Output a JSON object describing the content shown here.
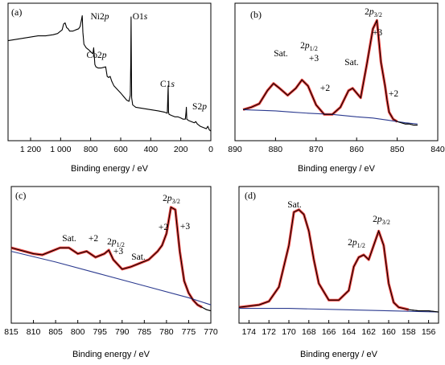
{
  "chart_data": [
    {
      "panel": "(a)",
      "type": "line",
      "xlabel": "Binding energy / eV",
      "ylabel": "",
      "xlim": [
        1350,
        0
      ],
      "ylim": [
        0,
        100
      ],
      "x_ticks": [
        1200,
        1000,
        800,
        600,
        400,
        200,
        0
      ],
      "x_tick_labels": [
        "1 200",
        "1 000",
        "800",
        "600",
        "400",
        "200",
        "0"
      ],
      "annotations": [
        {
          "text": "Ni2p",
          "x": 855
        },
        {
          "text": "Co2p",
          "x": 780
        },
        {
          "text": "O1s",
          "x": 531
        },
        {
          "text": "C1s",
          "x": 285
        },
        {
          "text": "S2p",
          "x": 163
        }
      ],
      "series": [
        {
          "color": "#000000",
          "x": [
            1350,
            1300,
            1250,
            1200,
            1150,
            1100,
            1050,
            1020,
            1000,
            990,
            980,
            970,
            960,
            950,
            940,
            920,
            900,
            880,
            870,
            862,
            856,
            852,
            845,
            830,
            810,
            795,
            785,
            780,
            776,
            772,
            765,
            750,
            730,
            700,
            690,
            680,
            670,
            660,
            645,
            630,
            615,
            600,
            580,
            560,
            545,
            536,
            533,
            531,
            529,
            527,
            520,
            500,
            450,
            400,
            350,
            310,
            290,
            286,
            284,
            282,
            278,
            260,
            240,
            220,
            200,
            185,
            170,
            165,
            163,
            160,
            150,
            130,
            110,
            100,
            90,
            70,
            50,
            30,
            20,
            10,
            0
          ],
          "y": [
            78,
            79,
            80,
            81,
            82,
            82,
            83,
            84,
            86,
            87,
            92,
            93,
            89,
            88,
            86,
            86,
            87,
            88,
            90,
            95,
            99,
            85,
            75,
            72,
            70,
            68,
            67,
            72,
            66,
            58,
            56,
            55,
            55,
            56,
            48,
            47,
            48,
            44,
            40,
            38,
            36,
            34,
            31,
            28,
            27,
            32,
            60,
            98,
            55,
            30,
            24,
            22,
            21,
            20,
            19,
            18,
            17,
            32,
            40,
            18,
            16,
            15,
            14,
            14,
            13,
            12,
            12,
            18,
            22,
            12,
            11,
            10,
            9,
            10,
            8,
            6,
            5,
            4,
            6,
            3,
            2
          ]
        }
      ]
    },
    {
      "panel": "(b)",
      "type": "line",
      "xlabel": "Binding energy / eV",
      "ylabel": "",
      "xlim": [
        890,
        840
      ],
      "ylim": [
        0,
        100
      ],
      "x_ticks": [
        890,
        880,
        870,
        860,
        850,
        840
      ],
      "annotations": [
        {
          "text": "Sat.",
          "x": 880.5
        },
        {
          "text": "2p1/2",
          "x": 873.5
        },
        {
          "text": "+3",
          "x": 873.5
        },
        {
          "text": "+2",
          "x": 870.5
        },
        {
          "text": "Sat.",
          "x": 861.5
        },
        {
          "text": "2p3/2",
          "x": 856
        },
        {
          "text": "+3",
          "x": 856
        },
        {
          "text": "+2",
          "x": 852.5
        }
      ],
      "series": [
        {
          "color": "#000000",
          "x": [
            888,
            886,
            884,
            882,
            880.5,
            879,
            877,
            875,
            873.5,
            872,
            870,
            868,
            866,
            864,
            862,
            861,
            859,
            857.5,
            856,
            855,
            854,
            853,
            852.5,
            852,
            851,
            850,
            849,
            848,
            847,
            846,
            845
          ],
          "y": [
            20,
            22,
            25,
            36,
            42,
            38,
            32,
            38,
            45,
            40,
            24,
            16,
            16,
            22,
            36,
            38,
            30,
            58,
            88,
            95,
            60,
            40,
            28,
            18,
            12,
            10,
            9,
            8,
            8,
            7,
            7
          ]
        },
        {
          "color": "#e8231f",
          "x": [
            888,
            886,
            884,
            882,
            880.5,
            879,
            877,
            875,
            873.5,
            872,
            870,
            868,
            866,
            864,
            862,
            861,
            859,
            857.5,
            856,
            855,
            854,
            853,
            852.5,
            852,
            851,
            850
          ],
          "y": [
            20,
            22,
            25,
            36,
            42,
            38,
            32,
            38,
            45,
            40,
            24,
            16,
            16,
            22,
            36,
            38,
            30,
            58,
            88,
            95,
            60,
            40,
            28,
            18,
            12,
            10
          ]
        },
        {
          "color": "#2b3a8f",
          "x": [
            888,
            880,
            876,
            872,
            866,
            860,
            856,
            852,
            848,
            845
          ],
          "y": [
            20,
            19,
            18,
            17,
            16,
            14,
            13,
            11,
            9,
            8
          ]
        }
      ]
    },
    {
      "panel": "(c)",
      "type": "line",
      "xlabel": "Binding energy / eV",
      "ylabel": "",
      "xlim": [
        815,
        770
      ],
      "ylim": [
        0,
        100
      ],
      "x_ticks": [
        815,
        810,
        805,
        800,
        795,
        790,
        785,
        780,
        775,
        770
      ],
      "annotations": [
        {
          "text": "Sat.",
          "x": 803
        },
        {
          "text": "+2",
          "x": 798
        },
        {
          "text": "2p1/2",
          "x": 794
        },
        {
          "text": "+3",
          "x": 793
        },
        {
          "text": "Sat.",
          "x": 786.5
        },
        {
          "text": "+2",
          "x": 781
        },
        {
          "text": "2p3/2",
          "x": 779
        },
        {
          "text": "+3",
          "x": 778
        }
      ],
      "series": [
        {
          "color": "#000000",
          "x": [
            815,
            812,
            810,
            808,
            806,
            804,
            802,
            800,
            798,
            796,
            794,
            793,
            792,
            790,
            788,
            786,
            784,
            782,
            781,
            780,
            779,
            778,
            777,
            776,
            775,
            774,
            773,
            772,
            771,
            770
          ],
          "y": [
            58,
            55,
            53,
            52,
            55,
            58,
            58,
            53,
            55,
            50,
            53,
            56,
            48,
            40,
            42,
            45,
            48,
            55,
            60,
            70,
            92,
            90,
            55,
            30,
            20,
            14,
            10,
            8,
            6,
            5
          ]
        },
        {
          "color": "#e8231f",
          "x": [
            815,
            812,
            810,
            808,
            806,
            804,
            802,
            800,
            798,
            796,
            794,
            793,
            792,
            790,
            788,
            786,
            784,
            782,
            781,
            780,
            779,
            778,
            777,
            776,
            775,
            774,
            773,
            772
          ],
          "y": [
            58,
            55,
            53,
            52,
            55,
            58,
            58,
            53,
            55,
            50,
            53,
            56,
            48,
            40,
            42,
            45,
            48,
            55,
            60,
            70,
            92,
            90,
            55,
            30,
            20,
            14,
            10,
            8
          ]
        },
        {
          "color": "#2b3a8f",
          "x": [
            815,
            805,
            795,
            785,
            775,
            770
          ],
          "y": [
            55,
            46,
            36,
            26,
            16,
            10
          ]
        }
      ]
    },
    {
      "panel": "(d)",
      "type": "line",
      "xlabel": "Binding energy / eV",
      "ylabel": "",
      "xlim": [
        175,
        155
      ],
      "ylim": [
        0,
        100
      ],
      "x_ticks": [
        174,
        172,
        170,
        168,
        166,
        164,
        162,
        160,
        158,
        156
      ],
      "annotations": [
        {
          "text": "Sat.",
          "x": 169
        },
        {
          "text": "2p1/2",
          "x": 162.3
        },
        {
          "text": "2p3/2",
          "x": 161
        }
      ],
      "series": [
        {
          "color": "#000000",
          "x": [
            175,
            174,
            173,
            172,
            171,
            170,
            169.5,
            169,
            168.5,
            168,
            167.5,
            167,
            166,
            165,
            164,
            163.5,
            163,
            162.5,
            162,
            161.5,
            161,
            160.5,
            160,
            159.5,
            159,
            158,
            157,
            156,
            155
          ],
          "y": [
            8,
            9,
            10,
            13,
            25,
            60,
            88,
            90,
            86,
            72,
            48,
            28,
            14,
            14,
            22,
            42,
            50,
            52,
            48,
            60,
            72,
            60,
            28,
            12,
            8,
            6,
            5,
            5,
            4
          ]
        },
        {
          "color": "#e8231f",
          "x": [
            175,
            174,
            173,
            172,
            171,
            170,
            169.5,
            169,
            168.5,
            168,
            167.5,
            167,
            166,
            165,
            164,
            163.5,
            163,
            162.5,
            162,
            161.5,
            161,
            160.5,
            160,
            159.5,
            159,
            158
          ],
          "y": [
            8,
            9,
            10,
            13,
            25,
            60,
            88,
            90,
            86,
            72,
            48,
            28,
            14,
            14,
            22,
            42,
            50,
            52,
            48,
            60,
            72,
            60,
            28,
            12,
            8,
            6
          ]
        },
        {
          "color": "#2b3a8f",
          "x": [
            175,
            170,
            165,
            160,
            155
          ],
          "y": [
            7,
            7,
            6,
            5,
            4
          ]
        }
      ]
    }
  ]
}
